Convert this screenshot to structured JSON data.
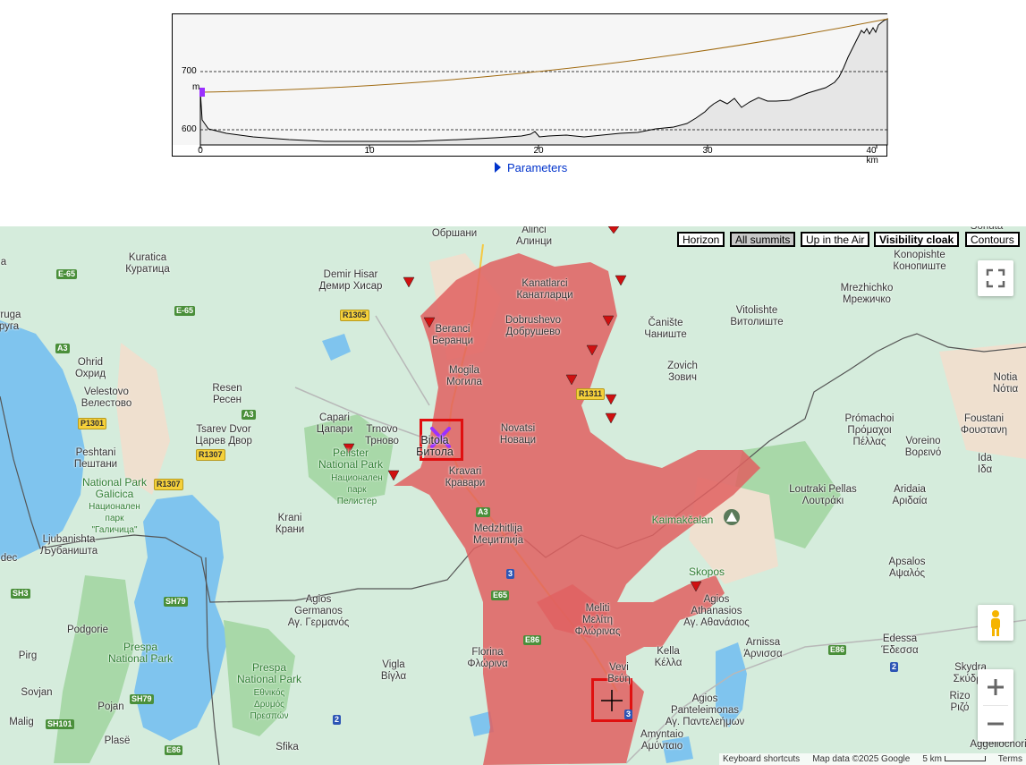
{
  "profile": {
    "y_unit": "m",
    "y_ticks": [
      "700",
      "600"
    ],
    "x_ticks": [
      "0",
      "10",
      "20",
      "30",
      "40 km"
    ]
  },
  "parameters_label": "Parameters",
  "layer_buttons": {
    "horizon": "Horizon",
    "all_summits": "All summits",
    "up_in_air": "Up in the Air",
    "visibility_cloak": "Visibility cloak",
    "contours": "Contours"
  },
  "places": [
    "Обршани",
    "Alinci\nАлинци",
    "Kuratica\nКуратица",
    "Demir Hisar\nДемир Хисар",
    "Kanatlarci\nКанатларци",
    "Konopishte\nКонопиште",
    "Beranci\nБеранци",
    "Dobrushevo\nДобрушево",
    "Vitolishte\nВитолиште",
    "Mrezhichko\nМрежичко",
    "Čanište\nЧаниште",
    "Ohrid\nОхрид",
    "Velestovo\nВелестово",
    "Resen\nРесен",
    "Mogila\nМогила",
    "Zovich\nЗович",
    "Notia\nNότια",
    "Capari\nЦапари",
    "Trnovo\nТрново",
    "Tsarev Dvor\nЦарев Двор",
    "Novatsi\nНовaци",
    "Prómachoi\nΠρόμαχοι\nΠέλλας",
    "Foustani\nΦουστανη",
    "Voreino\nΒορεινό",
    "Ida\nΙδα",
    "Peshtani\nПештани",
    "Bitola\nБитола",
    "Kravari\nКравари",
    "Loutraki Pellas\nΛουτράκι",
    "Aridaia\nΑριδαία",
    "Krani\nКрани",
    "Medzhitlija\nМеџитлија",
    "Ljubanishta\nЉубаништа",
    "Kaimakčalan",
    "Skopos",
    "Apsalos\nΑψαλός",
    "Agios\nGermanos\nΑγ. Γερμανός",
    "Agios\nAthanasios\nΑγ. Αθανάσιος",
    "Meliti\nΜελίτη\nΦλώρινας",
    "Podgorie",
    "Pirg",
    "Florina\nΦλώρινα",
    "Kella\nΚέλλα",
    "Arnissa\nΆρνισσα",
    "Edessa\nΈδεσσα",
    "Vigla\nΒίγλα",
    "Vevi\nΒεύη",
    "Skydra\nΣκύδρα",
    "Sovjan",
    "Pojan",
    "Agios\nPanteleimonas\nΑγ. Παντελεήμων",
    "Rizo\nΡιζό",
    "Malig",
    "Plasë",
    "Sfika",
    "Amyntaio\nΑμύνταιο",
    "Aggeliochori",
    "dec",
    "rruga\nруга",
    "a",
    "Sohuta\nЅохута"
  ],
  "parks": [
    "Pelister\nNational Park",
    "Национален\nпарк\nПелистер",
    "National Park Galicica",
    "Национален\nпарк\n\"Галичица\"",
    "Prespa\nNational Park",
    "Prespa\nNational Park",
    "Εθνικός\nΔρυμός\nΠρεσπών"
  ],
  "roads": [
    "E-65",
    "E-65",
    "A3",
    "R1305",
    "A3",
    "P1301",
    "R1307",
    "R1307",
    "R1311",
    "A3",
    "3",
    "E65",
    "SH3",
    "SH79",
    "SH79",
    "SH101",
    "E86",
    "E86",
    "E86",
    "2",
    "2",
    "3"
  ],
  "attribution": {
    "shortcuts": "Keyboard shortcuts",
    "map_data": "Map data ©2025 Google",
    "scale": "5 km",
    "terms": "Terms"
  },
  "colors": {
    "visibility": "#e06060",
    "summit_marker": "#d01010",
    "observer": "#9b30ff",
    "land": "#d5ecdc",
    "water": "#7fc4ee"
  }
}
